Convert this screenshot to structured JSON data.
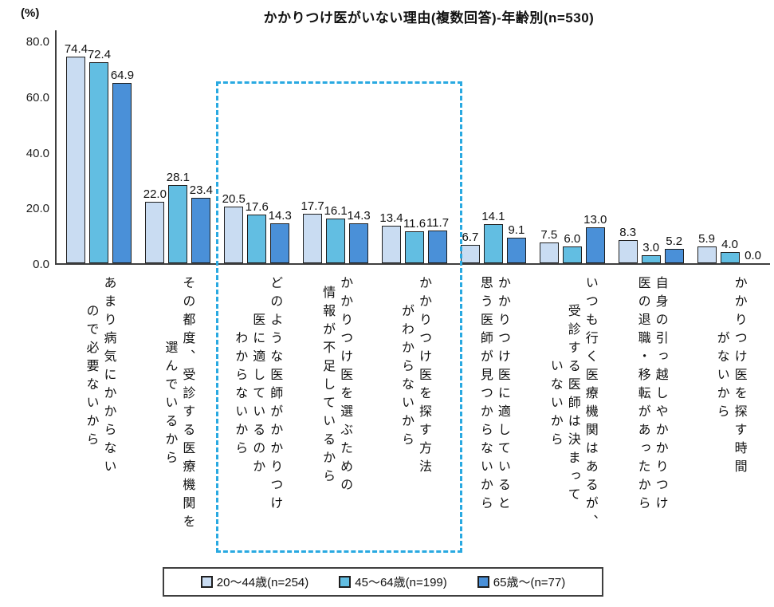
{
  "chart_data": {
    "type": "bar",
    "title": "かかりつけ医がいない理由(複数回答)-年齢別(n=530)",
    "y_unit_label": "(%)",
    "ylabel": "",
    "xlabel": "",
    "ylim": [
      0,
      80
    ],
    "y_ticks": [
      80.0,
      60.0,
      40.0,
      20.0,
      0.0
    ],
    "grid": false,
    "legend_position": "bottom",
    "categories": [
      "あまり病気にかからない\nので必要ないから",
      "その都度、受診する医療機関を\n選んでいるから",
      "どのような医師がかかりつけ\n医に適しているのか\nわからないから",
      "かかりつけ医を選ぶための\n情報が不足しているから",
      "かかりつけ医を探す方法\nがわからないから",
      "かかりつけ医に適していると\n思う医師が見つからないから",
      "いつも行く医療機関はあるが、\n受診する医師は決まって\nいないから",
      "自身の引っ越しやかかりつけ\n医の退職・移転があったから",
      "かかりつけ医を探す時間\nがないから"
    ],
    "series": [
      {
        "name": "20〜44歳(n=254)",
        "color": "#c9dcf2",
        "values": [
          74.4,
          22.0,
          20.5,
          17.7,
          13.4,
          6.7,
          7.5,
          8.3,
          5.9
        ]
      },
      {
        "name": "45〜64歳(n=199)",
        "color": "#62bee2",
        "values": [
          72.4,
          28.1,
          17.6,
          16.1,
          11.6,
          14.1,
          6.0,
          3.0,
          4.0
        ]
      },
      {
        "name": "65歳〜(n=77)",
        "color": "#4a90d8",
        "values": [
          64.9,
          23.4,
          14.3,
          14.3,
          11.7,
          9.1,
          13.0,
          5.2,
          0.0
        ]
      }
    ],
    "highlight_box": {
      "style": "dashed",
      "color": "#29a9e1",
      "categories_enclosed": [
        "どのような医師がかかりつけ医に適しているのかわからないから",
        "かかりつけ医を選ぶための情報が不足しているから",
        "かかりつけ医を探す方法がわからないから"
      ]
    }
  }
}
